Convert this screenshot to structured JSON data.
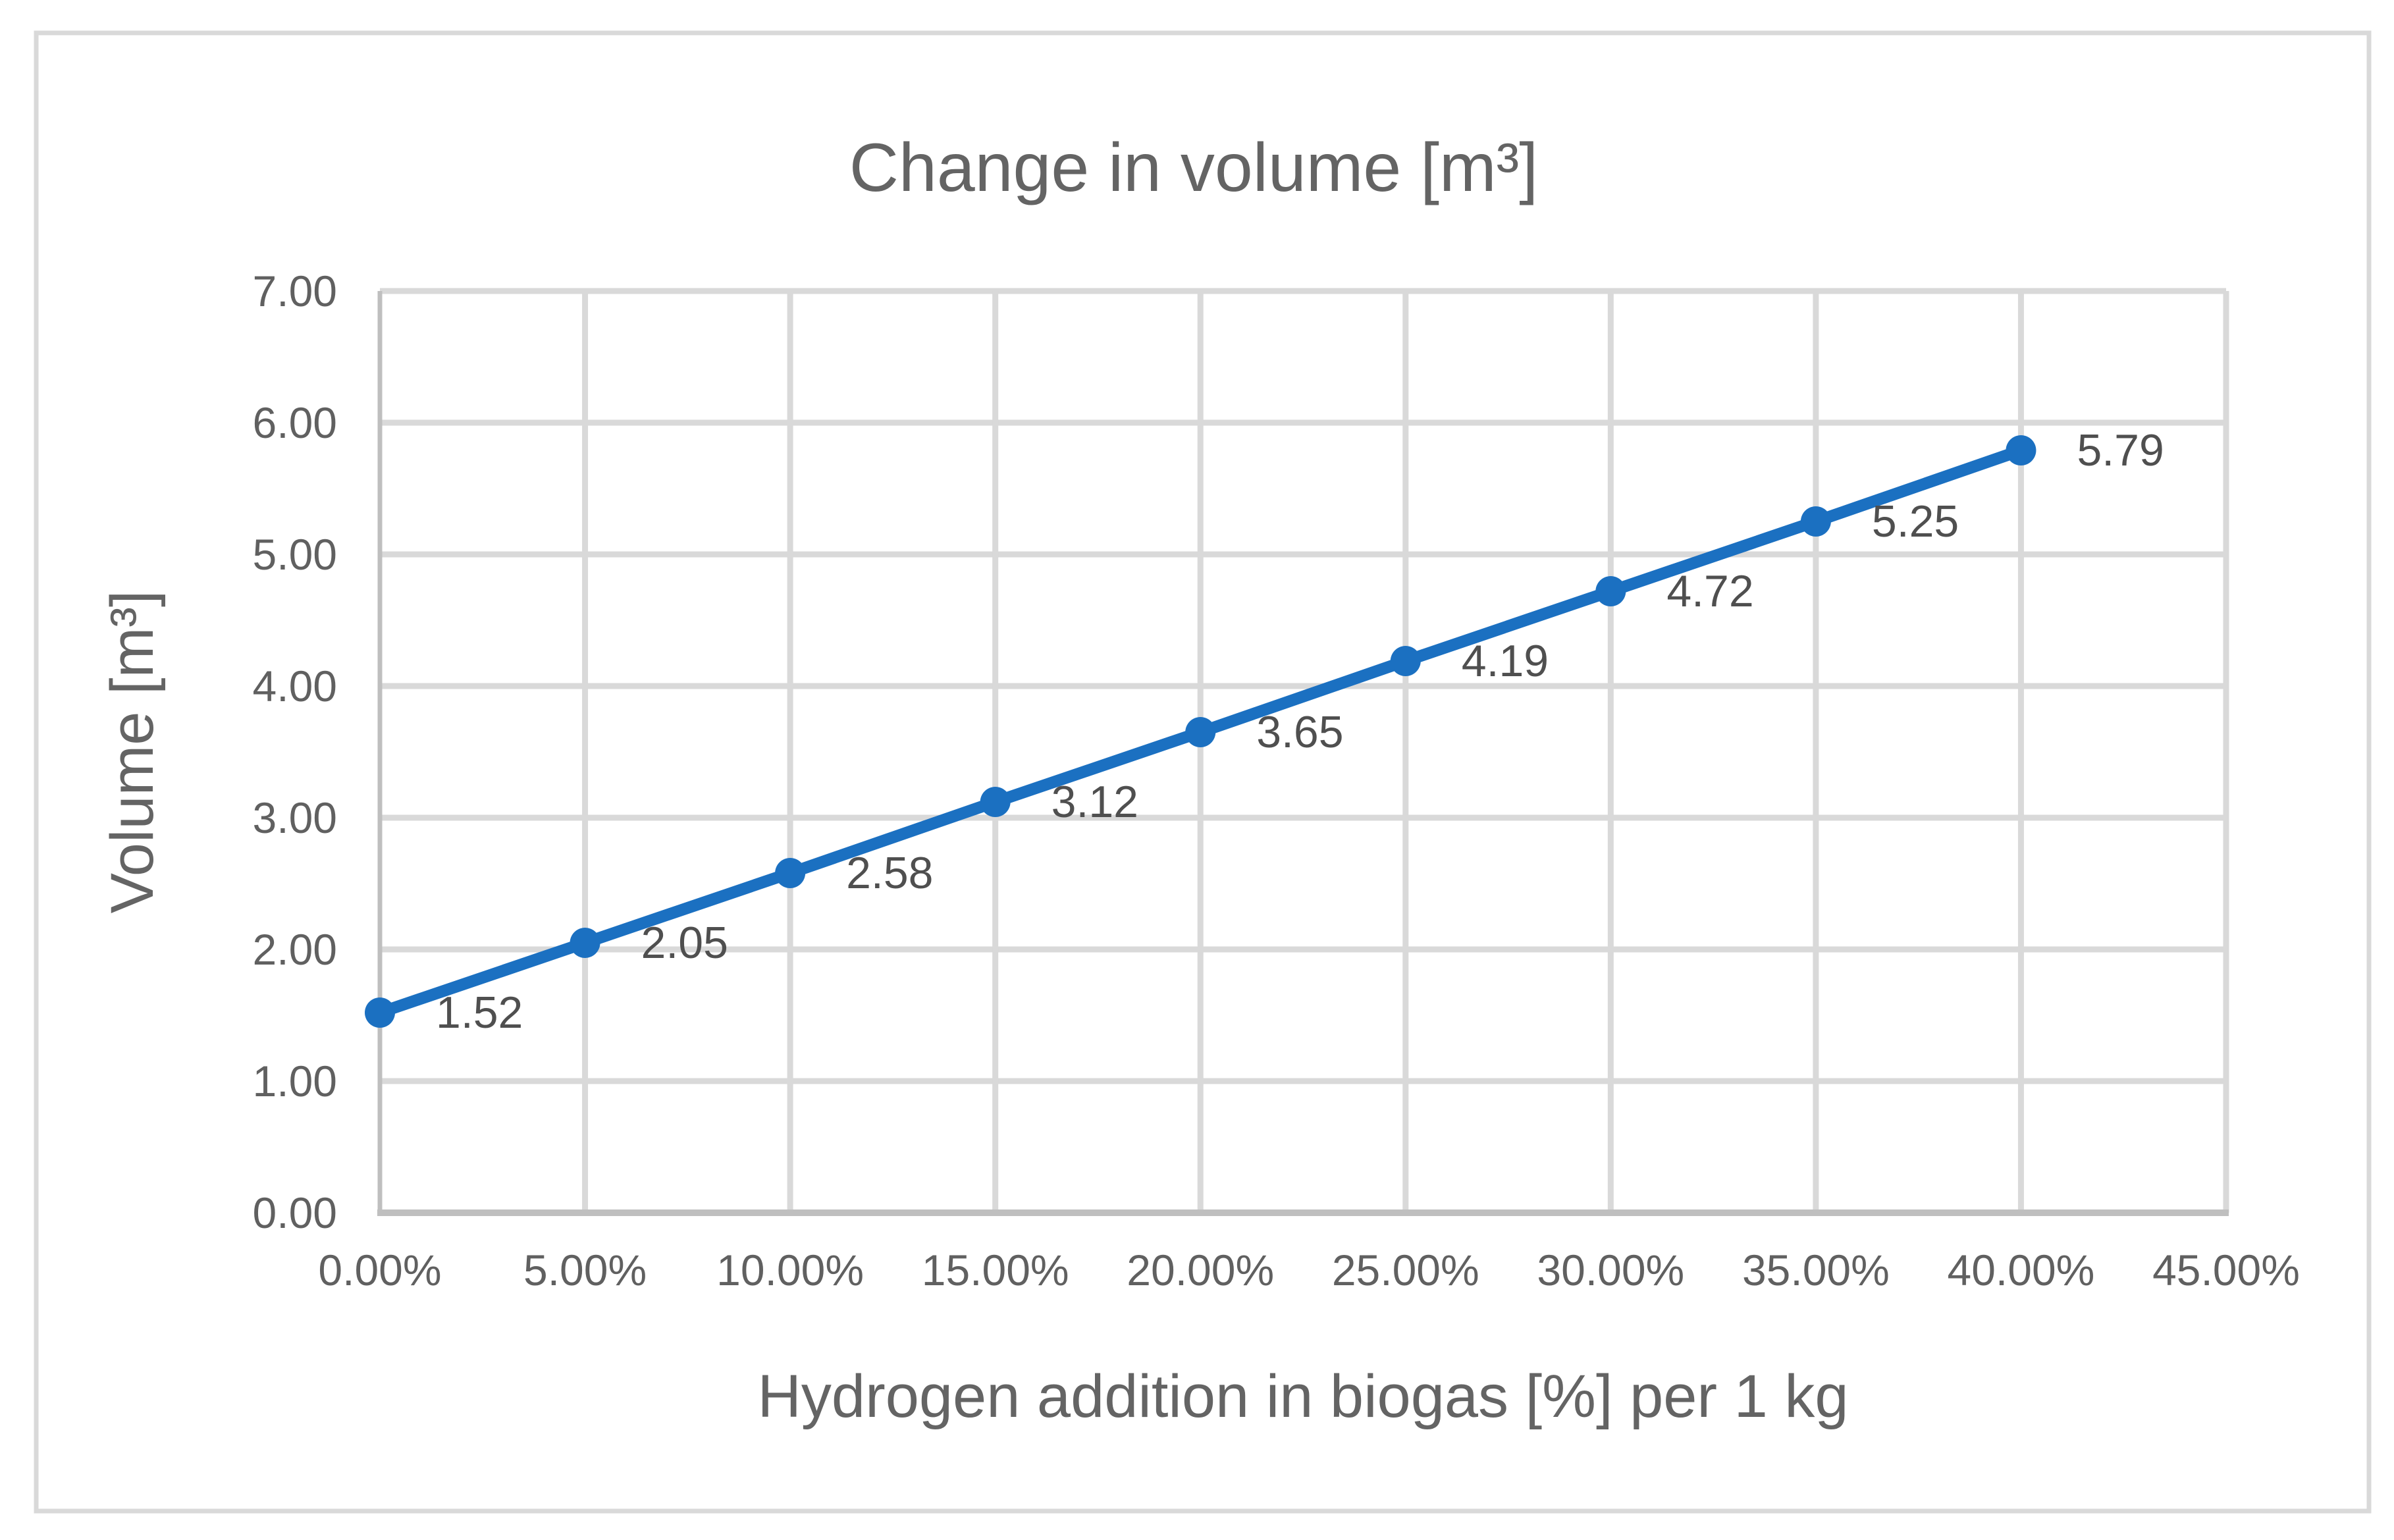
{
  "chart_data": {
    "type": "line",
    "title": "Change in volume [m³]",
    "xlabel": "Hydrogen addition in biogas [%] per 1 kg",
    "ylabel": "Volume [m³]",
    "categories": [
      "0.00%",
      "5.00%",
      "10.00%",
      "15.00%",
      "20.00%",
      "25.00%",
      "30.00%",
      "35.00%",
      "40.00%"
    ],
    "values": [
      1.52,
      2.05,
      2.58,
      3.12,
      3.65,
      4.19,
      4.72,
      5.25,
      5.79
    ],
    "point_labels": [
      "1.52",
      "2.05",
      "2.58",
      "3.12",
      "3.65",
      "4.19",
      "4.72",
      "5.25",
      "5.79"
    ],
    "x_tick_labels": [
      "0.00%",
      "5.00%",
      "10.00%",
      "15.00%",
      "20.00%",
      "25.00%",
      "30.00%",
      "35.00%",
      "40.00%",
      "45.00%"
    ],
    "y_tick_labels": [
      "0.00",
      "1.00",
      "2.00",
      "3.00",
      "4.00",
      "5.00",
      "6.00",
      "7.00"
    ],
    "ylim": [
      0,
      7
    ],
    "grid": true,
    "legend": "none",
    "colors": {
      "series_line": "#1B70C1",
      "marker_fill": "#1B70C1",
      "gridline": "#D9D9D9",
      "axis_line": "#BFBFBF",
      "tick_text": "#606060",
      "data_label_text": "#4F4F4F",
      "title_text": "#646464",
      "frame_border": "#D9D9D9",
      "background": "#FFFFFF"
    }
  }
}
